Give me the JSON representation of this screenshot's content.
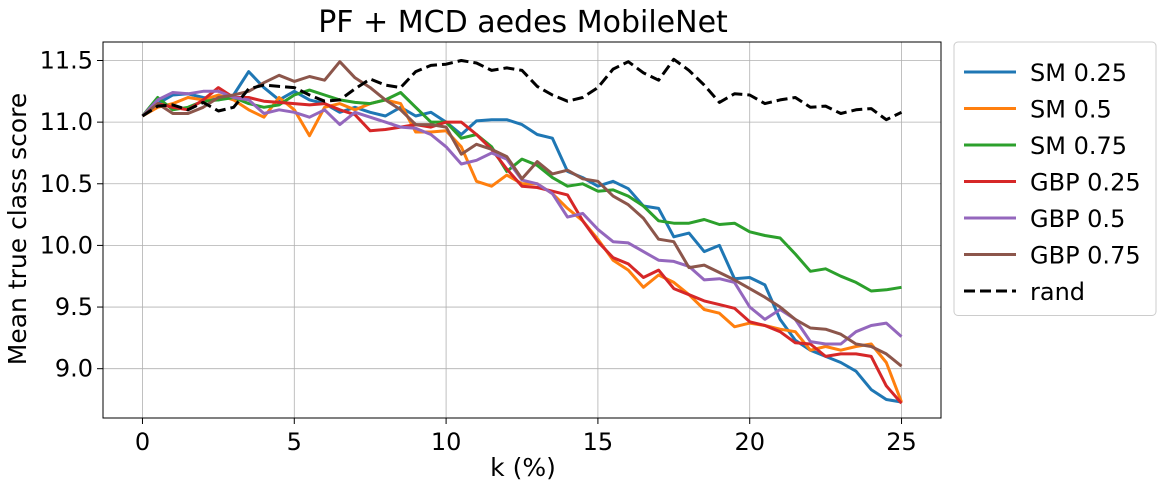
{
  "chart_data": {
    "type": "line",
    "title": "PF + MCD aedes MobileNet",
    "xlabel": "k (%)",
    "ylabel": "Mean true class score",
    "xlim": [
      -1.3,
      26.3
    ],
    "ylim": [
      8.6,
      11.65
    ],
    "xticks": [
      0,
      5,
      10,
      15,
      20,
      25
    ],
    "yticks": [
      9.0,
      9.5,
      10.0,
      10.5,
      11.0,
      11.5
    ],
    "xtick_labels": [
      "0",
      "5",
      "10",
      "15",
      "20",
      "25"
    ],
    "ytick_labels": [
      "9.0",
      "9.5",
      "10.0",
      "10.5",
      "11.0",
      "11.5"
    ],
    "grid": true,
    "legend_position": "outside-right",
    "x": [
      0,
      0.5,
      1,
      1.5,
      2,
      2.5,
      3,
      3.5,
      4,
      4.5,
      5,
      5.5,
      6,
      6.5,
      7,
      7.5,
      8,
      8.5,
      9,
      9.5,
      10,
      10.5,
      11,
      11.5,
      12,
      12.5,
      13,
      13.5,
      14,
      14.5,
      15,
      15.5,
      16,
      16.5,
      17,
      17.5,
      18,
      18.5,
      19,
      19.5,
      20,
      20.5,
      21,
      21.5,
      22,
      22.5,
      23,
      23.5,
      24,
      24.5,
      25
    ],
    "series": [
      {
        "name": "SM 0.25",
        "color": "#1f77b4",
        "dash": "solid",
        "values": [
          11.05,
          11.15,
          11.22,
          11.23,
          11.2,
          11.18,
          11.22,
          11.41,
          11.28,
          11.18,
          11.25,
          11.18,
          11.15,
          11.08,
          11.12,
          11.08,
          11.05,
          11.12,
          11.05,
          11.08,
          11.0,
          10.9,
          11.01,
          11.02,
          11.02,
          10.98,
          10.9,
          10.87,
          10.6,
          10.55,
          10.48,
          10.52,
          10.46,
          10.32,
          10.3,
          10.07,
          10.1,
          9.95,
          10.0,
          9.73,
          9.74,
          9.68,
          9.4,
          9.23,
          9.15,
          9.1,
          9.05,
          8.98,
          8.83,
          8.75,
          8.73
        ]
      },
      {
        "name": "SM 0.5",
        "color": "#ff7f0e",
        "dash": "solid",
        "values": [
          11.05,
          11.12,
          11.15,
          11.2,
          11.18,
          11.22,
          11.18,
          11.1,
          11.04,
          11.2,
          11.1,
          10.89,
          11.12,
          11.15,
          11.1,
          11.15,
          11.18,
          11.15,
          10.92,
          10.92,
          10.93,
          10.8,
          10.52,
          10.48,
          10.57,
          10.5,
          10.5,
          10.42,
          10.3,
          10.2,
          10.05,
          9.88,
          9.8,
          9.66,
          9.76,
          9.7,
          9.6,
          9.48,
          9.45,
          9.34,
          9.37,
          9.35,
          9.32,
          9.3,
          9.15,
          9.18,
          9.15,
          9.18,
          9.2,
          9.05,
          8.73
        ]
      },
      {
        "name": "SM 0.75",
        "color": "#2ca02c",
        "dash": "solid",
        "values": [
          11.05,
          11.2,
          11.1,
          11.12,
          11.17,
          11.18,
          11.2,
          11.15,
          11.12,
          11.14,
          11.22,
          11.26,
          11.22,
          11.18,
          11.16,
          11.15,
          11.18,
          11.24,
          11.12,
          11.0,
          11.0,
          10.87,
          10.9,
          10.8,
          10.6,
          10.7,
          10.65,
          10.55,
          10.48,
          10.5,
          10.44,
          10.45,
          10.4,
          10.32,
          10.2,
          10.18,
          10.18,
          10.21,
          10.17,
          10.18,
          10.11,
          10.08,
          10.06,
          9.93,
          9.79,
          9.81,
          9.75,
          9.7,
          9.63,
          9.64,
          9.66
        ]
      },
      {
        "name": "GBP 0.25",
        "color": "#d62728",
        "dash": "solid",
        "values": [
          11.05,
          11.15,
          11.12,
          11.1,
          11.18,
          11.28,
          11.2,
          11.2,
          11.17,
          11.16,
          11.15,
          11.14,
          11.15,
          11.1,
          11.06,
          10.93,
          10.94,
          10.96,
          10.98,
          10.96,
          11.0,
          11.0,
          10.9,
          10.78,
          10.62,
          10.48,
          10.47,
          10.44,
          10.41,
          10.2,
          10.03,
          9.9,
          9.85,
          9.74,
          9.8,
          9.65,
          9.6,
          9.55,
          9.52,
          9.49,
          9.38,
          9.35,
          9.3,
          9.21,
          9.2,
          9.1,
          9.12,
          9.12,
          9.1,
          8.86,
          8.72
        ]
      },
      {
        "name": "GBP 0.5",
        "color": "#9467bd",
        "dash": "solid",
        "values": [
          11.05,
          11.18,
          11.24,
          11.23,
          11.25,
          11.25,
          11.2,
          11.18,
          11.07,
          11.1,
          11.08,
          11.04,
          11.1,
          10.98,
          11.08,
          11.04,
          11.0,
          10.96,
          10.95,
          10.9,
          10.8,
          10.66,
          10.69,
          10.75,
          10.7,
          10.53,
          10.5,
          10.42,
          10.23,
          10.26,
          10.13,
          10.03,
          10.02,
          9.95,
          9.88,
          9.87,
          9.83,
          9.72,
          9.73,
          9.7,
          9.5,
          9.4,
          9.48,
          9.4,
          9.22,
          9.2,
          9.2,
          9.3,
          9.35,
          9.37,
          9.26
        ]
      },
      {
        "name": "GBP 0.75",
        "color": "#8c564b",
        "dash": "solid",
        "values": [
          11.05,
          11.15,
          11.07,
          11.07,
          11.12,
          11.2,
          11.22,
          11.25,
          11.32,
          11.38,
          11.33,
          11.37,
          11.34,
          11.49,
          11.36,
          11.28,
          11.18,
          11.1,
          10.98,
          10.98,
          10.96,
          10.74,
          10.82,
          10.78,
          10.72,
          10.54,
          10.68,
          10.58,
          10.61,
          10.54,
          10.52,
          10.4,
          10.33,
          10.22,
          10.05,
          10.03,
          9.82,
          9.84,
          9.78,
          9.72,
          9.65,
          9.58,
          9.5,
          9.4,
          9.33,
          9.32,
          9.28,
          9.2,
          9.18,
          9.12,
          9.02
        ]
      },
      {
        "name": "rand",
        "color": "#000000",
        "dash": "dashed",
        "values": [
          11.05,
          11.13,
          11.14,
          11.1,
          11.16,
          11.09,
          11.12,
          11.27,
          11.3,
          11.29,
          11.28,
          11.22,
          11.17,
          11.18,
          11.27,
          11.35,
          11.3,
          11.28,
          11.41,
          11.46,
          11.47,
          11.5,
          11.48,
          11.42,
          11.44,
          11.42,
          11.29,
          11.22,
          11.17,
          11.2,
          11.28,
          11.43,
          11.49,
          11.4,
          11.34,
          11.51,
          11.42,
          11.3,
          11.16,
          11.23,
          11.22,
          11.15,
          11.18,
          11.2,
          11.12,
          11.13,
          11.07,
          11.1,
          11.11,
          11.02,
          11.08
        ]
      }
    ]
  }
}
